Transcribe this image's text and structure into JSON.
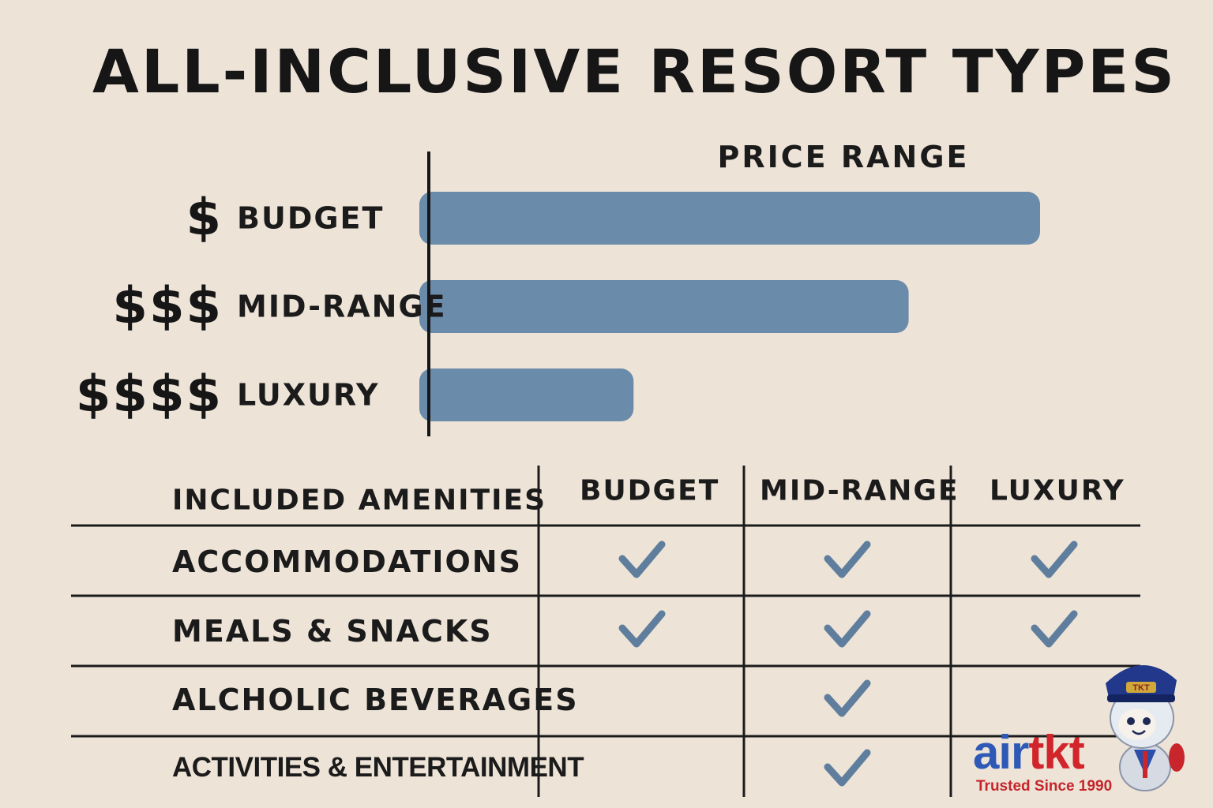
{
  "title": "ALL-INCLUSIVE RESORT TYPES",
  "chart_data": {
    "type": "bar",
    "orientation": "horizontal",
    "title": "PRICE RANGE",
    "categories": [
      "BUDGET",
      "MID-RANGE",
      "LUXURY"
    ],
    "price_symbols": [
      "$",
      "$$$",
      "$$$$"
    ],
    "values": [
      100,
      78.5,
      33.5
    ],
    "xlim": [
      0,
      100
    ],
    "grid": false,
    "legend": "none",
    "bar_color": "#6b8bab"
  },
  "amenities_table": {
    "header": "INCLUDED AMENITIES",
    "columns": [
      "BUDGET",
      "MID-RANGE",
      "LUXURY"
    ],
    "rows": [
      {
        "label": "ACCOMMODATIONS",
        "checks": [
          true,
          true,
          true
        ]
      },
      {
        "label": "MEALS & SNACKS",
        "checks": [
          true,
          true,
          true
        ]
      },
      {
        "label": "ALCHOLIC BEVERAGES",
        "checks": [
          false,
          true,
          false
        ]
      },
      {
        "label": "ACTIVITIES & ENTERTAINMENT",
        "checks": [
          false,
          true,
          false
        ]
      }
    ],
    "check_color": "#5f7e9d",
    "check_icon": "checkmark-icon"
  },
  "logo": {
    "brand_part1": "air",
    "brand_part2": "tkt",
    "tagline": "Trusted Since 1990",
    "mascot": "pilot-mascot-icon"
  }
}
